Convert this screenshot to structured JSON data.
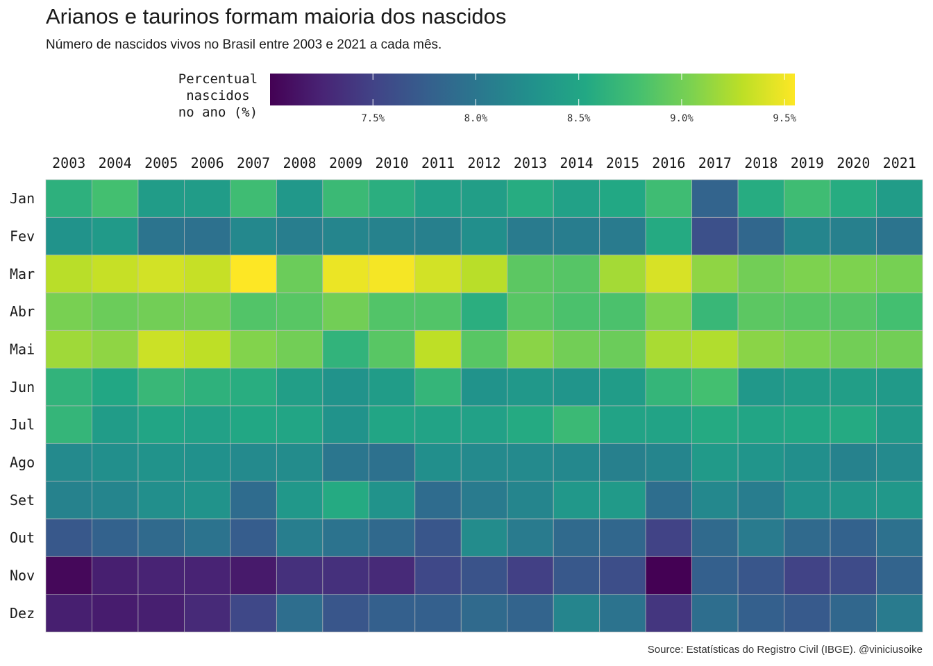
{
  "title": "Arianos e taurinos formam maioria dos nascidos",
  "subtitle": "Número de nascidos vivos no Brasil entre 2003 e 2021 a cada mês.",
  "legend": {
    "title": "Percentual\nnascidos\nno ano (%)",
    "ticks": [
      7.5,
      8.0,
      8.5,
      9.0,
      9.5
    ],
    "tick_labels": [
      "7.5%",
      "8.0%",
      "8.5%",
      "9.0%",
      "9.5%"
    ],
    "range": [
      7.0,
      9.55
    ],
    "palette": "viridis"
  },
  "source": "Source: Estatísticas do Registro Civil (IBGE). @viniciusoike",
  "chart_data": {
    "type": "heatmap",
    "x": [
      "2003",
      "2004",
      "2005",
      "2006",
      "2007",
      "2008",
      "2009",
      "2010",
      "2011",
      "2012",
      "2013",
      "2014",
      "2015",
      "2016",
      "2017",
      "2018",
      "2019",
      "2020",
      "2021"
    ],
    "y": [
      "Jan",
      "Fev",
      "Mar",
      "Abr",
      "Mai",
      "Jun",
      "Jul",
      "Ago",
      "Set",
      "Out",
      "Nov",
      "Dez"
    ],
    "x_position": "top",
    "values": [
      [
        8.62,
        8.78,
        8.4,
        8.4,
        8.75,
        8.35,
        8.72,
        8.6,
        8.45,
        8.42,
        8.57,
        8.45,
        8.53,
        8.75,
        7.82,
        8.57,
        8.75,
        8.57,
        8.4
      ],
      [
        8.3,
        8.38,
        7.98,
        7.95,
        8.18,
        8.08,
        8.15,
        8.12,
        8.1,
        8.25,
        8.05,
        8.07,
        8.05,
        8.55,
        7.62,
        7.85,
        8.15,
        8.1,
        7.98
      ],
      [
        9.28,
        9.33,
        9.38,
        9.33,
        9.55,
        8.97,
        9.48,
        9.52,
        9.38,
        9.28,
        8.9,
        8.87,
        9.2,
        9.4,
        9.12,
        9.0,
        9.05,
        9.05,
        9.02
      ],
      [
        9.03,
        8.97,
        9.0,
        9.0,
        8.85,
        8.88,
        9.0,
        8.85,
        8.85,
        8.6,
        8.88,
        8.82,
        8.82,
        9.05,
        8.7,
        8.9,
        8.88,
        8.87,
        8.78
      ],
      [
        9.18,
        9.12,
        9.35,
        9.3,
        9.07,
        9.0,
        8.65,
        8.88,
        9.3,
        8.88,
        9.1,
        9.0,
        8.97,
        9.22,
        9.25,
        9.1,
        9.05,
        9.0,
        9.0
      ],
      [
        8.65,
        8.52,
        8.7,
        8.63,
        8.58,
        8.42,
        8.3,
        8.4,
        8.67,
        8.3,
        8.35,
        8.32,
        8.4,
        8.67,
        8.78,
        8.35,
        8.4,
        8.42,
        8.38
      ],
      [
        8.67,
        8.4,
        8.5,
        8.45,
        8.52,
        8.5,
        8.3,
        8.5,
        8.48,
        8.45,
        8.55,
        8.72,
        8.48,
        8.48,
        8.55,
        8.5,
        8.52,
        8.55,
        8.38
      ],
      [
        8.2,
        8.25,
        8.3,
        8.28,
        8.2,
        8.22,
        8.0,
        7.95,
        8.25,
        8.2,
        8.2,
        8.18,
        8.1,
        8.15,
        8.38,
        8.32,
        8.25,
        8.12,
        8.2
      ],
      [
        8.12,
        8.15,
        8.25,
        8.3,
        7.9,
        8.35,
        8.55,
        8.3,
        7.9,
        8.05,
        8.15,
        8.35,
        8.38,
        7.92,
        8.18,
        8.07,
        8.28,
        8.33,
        8.35
      ],
      [
        7.7,
        7.8,
        7.88,
        7.97,
        7.75,
        8.08,
        7.97,
        7.87,
        7.68,
        8.22,
        8.05,
        7.88,
        7.85,
        7.5,
        7.88,
        8.05,
        7.88,
        7.8,
        7.95
      ],
      [
        7.05,
        7.22,
        7.25,
        7.25,
        7.18,
        7.35,
        7.35,
        7.3,
        7.55,
        7.65,
        7.48,
        7.7,
        7.6,
        7.0,
        7.78,
        7.68,
        7.5,
        7.58,
        7.82
      ],
      [
        7.22,
        7.2,
        7.22,
        7.3,
        7.55,
        7.92,
        7.68,
        7.78,
        7.78,
        7.88,
        7.82,
        8.15,
        7.97,
        7.4,
        7.92,
        7.78,
        7.72,
        7.85,
        8.05
      ]
    ]
  }
}
